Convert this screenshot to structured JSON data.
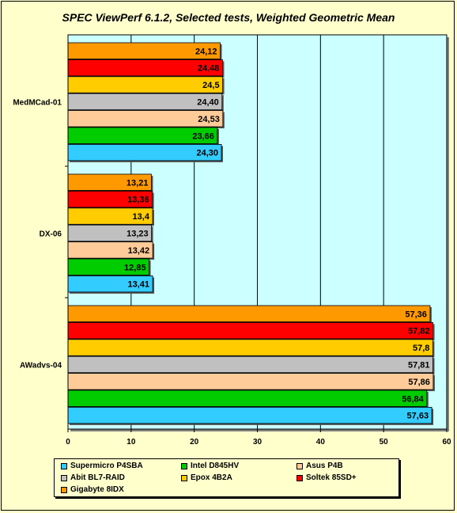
{
  "chart_data": {
    "type": "bar",
    "orientation": "horizontal",
    "title": "SPEC ViewPerf 6.1.2, Selected tests, Weighted Geometric Mean",
    "categories": [
      "MedMCad-01",
      "DX-06",
      "AWadvs-04"
    ],
    "xlim": [
      0,
      60
    ],
    "xticks": [
      "0",
      "10",
      "20",
      "30",
      "40",
      "50",
      "60"
    ],
    "grid": true,
    "legend_position": "bottom",
    "series": [
      {
        "name": "Gigabyte 8IDX",
        "color": "#ff9900",
        "values": [
          24.12,
          13.21,
          57.36
        ],
        "labels": [
          "24,12",
          "13,21",
          "57,36"
        ]
      },
      {
        "name": "Soltek 85SD+",
        "color": "#ff0000",
        "values": [
          24.48,
          13.36,
          57.82
        ],
        "labels": [
          "24,48",
          "13,36",
          "57,82"
        ]
      },
      {
        "name": "Epox 4B2A",
        "color": "#ffcc00",
        "values": [
          24.5,
          13.4,
          57.8
        ],
        "labels": [
          "24,5",
          "13,4",
          "57,8"
        ]
      },
      {
        "name": "Abit BL7-RAID",
        "color": "#c0c0c0",
        "values": [
          24.4,
          13.23,
          57.81
        ],
        "labels": [
          "24,40",
          "13,23",
          "57,81"
        ]
      },
      {
        "name": "Asus P4B",
        "color": "#ffcc99",
        "values": [
          24.53,
          13.42,
          57.86
        ],
        "labels": [
          "24,53",
          "13,42",
          "57,86"
        ]
      },
      {
        "name": "Intel D845HV",
        "color": "#00cc00",
        "values": [
          23.66,
          12.85,
          56.84
        ],
        "labels": [
          "23,66",
          "12,85",
          "56,84"
        ]
      },
      {
        "name": "Supermicro P4SBA",
        "color": "#33ccff",
        "values": [
          24.3,
          13.41,
          57.63
        ],
        "labels": [
          "24,30",
          "13,41",
          "57,63"
        ]
      }
    ],
    "legend_order": [
      "Supermicro P4SBA",
      "Intel D845HV",
      "Asus P4B",
      "Abit BL7-RAID",
      "Epox 4B2A",
      "Soltek 85SD+",
      "Gigabyte 8IDX"
    ]
  },
  "colors": {
    "page_background": "#ffffcc",
    "plot_background": "#ccffff"
  }
}
